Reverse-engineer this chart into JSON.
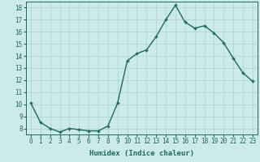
{
  "xlabel": "Humidex (Indice chaleur)",
  "x": [
    0,
    1,
    2,
    3,
    4,
    5,
    6,
    7,
    8,
    9,
    10,
    11,
    12,
    13,
    14,
    15,
    16,
    17,
    18,
    19,
    20,
    21,
    22,
    23
  ],
  "y": [
    10.1,
    8.5,
    8.0,
    7.7,
    8.0,
    7.9,
    7.8,
    7.8,
    8.2,
    10.1,
    13.6,
    14.2,
    14.5,
    15.6,
    17.0,
    18.2,
    16.8,
    16.3,
    16.5,
    15.9,
    15.1,
    13.8,
    12.6,
    11.9
  ],
  "line_color": "#1a6b5a",
  "marker": "+",
  "marker_size": 3,
  "background_color": "#cceae7",
  "grid_color": "#b0d8d2",
  "ylim": [
    7.5,
    18.5
  ],
  "xlim": [
    -0.5,
    23.5
  ],
  "yticks": [
    8,
    9,
    10,
    11,
    12,
    13,
    14,
    15,
    16,
    17,
    18
  ],
  "xticks": [
    0,
    1,
    2,
    3,
    4,
    5,
    6,
    7,
    8,
    9,
    10,
    11,
    12,
    13,
    14,
    15,
    16,
    17,
    18,
    19,
    20,
    21,
    22,
    23
  ],
  "tick_color": "#1a6b5a",
  "label_fontsize": 6.5,
  "tick_fontsize": 5.5,
  "linewidth": 1.0,
  "markeredgewidth": 1.0
}
